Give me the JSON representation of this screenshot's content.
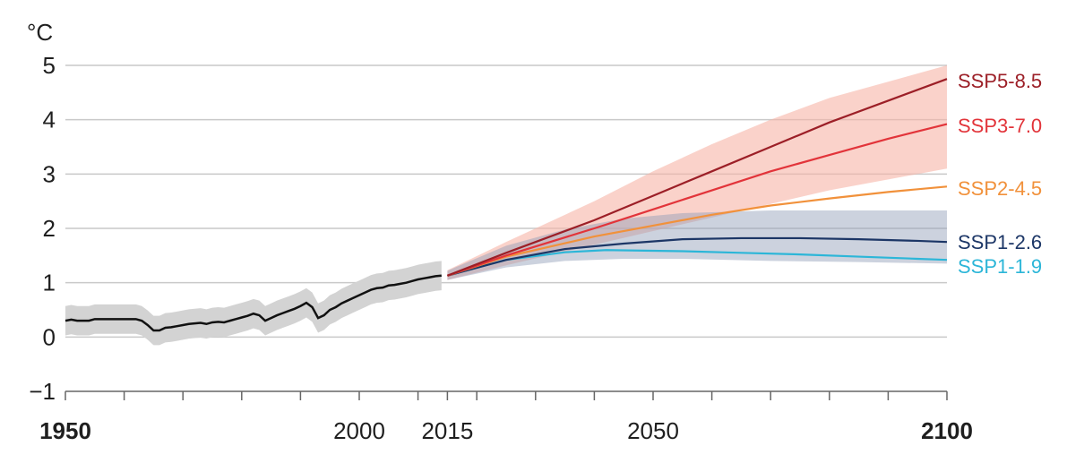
{
  "chart_data": {
    "type": "line",
    "ylabel": "°C",
    "xlim": [
      1950,
      2100
    ],
    "ylim": [
      -1,
      5
    ],
    "y_ticks": [
      -1,
      0,
      1,
      2,
      3,
      4,
      5
    ],
    "x_tick_labels": [
      {
        "value": 1950,
        "label": "1950",
        "bold": true
      },
      {
        "value": 2000,
        "label": "2000",
        "bold": false
      },
      {
        "value": 2015,
        "label": "2015",
        "bold": false
      },
      {
        "value": 2050,
        "label": "2050",
        "bold": false
      },
      {
        "value": 2100,
        "label": "2100",
        "bold": true
      }
    ],
    "x_minor_ticks": [
      1950,
      1960,
      1970,
      1980,
      1990,
      2000,
      2010,
      2015,
      2020,
      2030,
      2040,
      2050,
      2060,
      2070,
      2080,
      2090,
      2100
    ],
    "grid": true,
    "historical": {
      "color": "#111111",
      "band_color": "#d3d3d3",
      "points": [
        [
          1950,
          0.3
        ],
        [
          1951,
          0.32
        ],
        [
          1952,
          0.3
        ],
        [
          1953,
          0.3
        ],
        [
          1954,
          0.3
        ],
        [
          1955,
          0.33
        ],
        [
          1956,
          0.33
        ],
        [
          1957,
          0.33
        ],
        [
          1958,
          0.33
        ],
        [
          1959,
          0.33
        ],
        [
          1960,
          0.33
        ],
        [
          1961,
          0.33
        ],
        [
          1962,
          0.33
        ],
        [
          1963,
          0.3
        ],
        [
          1964,
          0.22
        ],
        [
          1965,
          0.12
        ],
        [
          1966,
          0.12
        ],
        [
          1967,
          0.17
        ],
        [
          1968,
          0.18
        ],
        [
          1969,
          0.2
        ],
        [
          1970,
          0.22
        ],
        [
          1971,
          0.24
        ],
        [
          1972,
          0.25
        ],
        [
          1973,
          0.26
        ],
        [
          1974,
          0.24
        ],
        [
          1975,
          0.27
        ],
        [
          1976,
          0.28
        ],
        [
          1977,
          0.27
        ],
        [
          1978,
          0.3
        ],
        [
          1979,
          0.33
        ],
        [
          1980,
          0.36
        ],
        [
          1981,
          0.39
        ],
        [
          1982,
          0.43
        ],
        [
          1983,
          0.4
        ],
        [
          1984,
          0.3
        ],
        [
          1985,
          0.35
        ],
        [
          1986,
          0.4
        ],
        [
          1987,
          0.44
        ],
        [
          1988,
          0.48
        ],
        [
          1989,
          0.52
        ],
        [
          1990,
          0.57
        ],
        [
          1991,
          0.63
        ],
        [
          1992,
          0.55
        ],
        [
          1993,
          0.35
        ],
        [
          1994,
          0.4
        ],
        [
          1995,
          0.5
        ],
        [
          1996,
          0.55
        ],
        [
          1997,
          0.62
        ],
        [
          1998,
          0.67
        ],
        [
          1999,
          0.72
        ],
        [
          2000,
          0.77
        ],
        [
          2001,
          0.82
        ],
        [
          2002,
          0.87
        ],
        [
          2003,
          0.9
        ],
        [
          2004,
          0.91
        ],
        [
          2005,
          0.95
        ],
        [
          2006,
          0.96
        ],
        [
          2007,
          0.98
        ],
        [
          2008,
          1.0
        ],
        [
          2009,
          1.03
        ],
        [
          2010,
          1.06
        ],
        [
          2011,
          1.08
        ],
        [
          2012,
          1.1
        ],
        [
          2013,
          1.12
        ],
        [
          2014,
          1.13
        ]
      ],
      "band_half_width": 0.27
    },
    "projection_start": [
      2015,
      1.13
    ],
    "series": [
      {
        "name": "SSP5-8.5",
        "color": "#9c1f27",
        "label_color": "#9c1f27",
        "points": [
          [
            2015,
            1.13
          ],
          [
            2025,
            1.55
          ],
          [
            2040,
            2.15
          ],
          [
            2050,
            2.6
          ],
          [
            2060,
            3.05
          ],
          [
            2070,
            3.5
          ],
          [
            2080,
            3.95
          ],
          [
            2090,
            4.35
          ],
          [
            2100,
            4.75
          ]
        ]
      },
      {
        "name": "SSP3-7.0",
        "color": "#e2343a",
        "label_color": "#e2343a",
        "points": [
          [
            2015,
            1.13
          ],
          [
            2025,
            1.5
          ],
          [
            2040,
            2.0
          ],
          [
            2050,
            2.35
          ],
          [
            2060,
            2.7
          ],
          [
            2070,
            3.05
          ],
          [
            2080,
            3.35
          ],
          [
            2090,
            3.65
          ],
          [
            2100,
            3.92
          ]
        ]
      },
      {
        "name": "SSP2-4.5",
        "color": "#f1913b",
        "label_color": "#f1913b",
        "points": [
          [
            2015,
            1.13
          ],
          [
            2025,
            1.48
          ],
          [
            2040,
            1.85
          ],
          [
            2050,
            2.05
          ],
          [
            2060,
            2.25
          ],
          [
            2070,
            2.42
          ],
          [
            2080,
            2.55
          ],
          [
            2090,
            2.67
          ],
          [
            2100,
            2.77
          ]
        ]
      },
      {
        "name": "SSP1-2.6",
        "color": "#1c3666",
        "label_color": "#1c3666",
        "points": [
          [
            2015,
            1.13
          ],
          [
            2025,
            1.42
          ],
          [
            2035,
            1.62
          ],
          [
            2045,
            1.72
          ],
          [
            2055,
            1.8
          ],
          [
            2065,
            1.82
          ],
          [
            2075,
            1.82
          ],
          [
            2085,
            1.8
          ],
          [
            2095,
            1.77
          ],
          [
            2100,
            1.75
          ]
        ]
      },
      {
        "name": "SSP1-1.9",
        "color": "#2cb6d8",
        "label_color": "#2cb6d8",
        "points": [
          [
            2015,
            1.13
          ],
          [
            2025,
            1.42
          ],
          [
            2035,
            1.56
          ],
          [
            2042,
            1.6
          ],
          [
            2055,
            1.58
          ],
          [
            2065,
            1.55
          ],
          [
            2075,
            1.52
          ],
          [
            2085,
            1.48
          ],
          [
            2095,
            1.44
          ],
          [
            2100,
            1.42
          ]
        ]
      }
    ],
    "bands": [
      {
        "name": "SSP5-8.5 / SSP3-7.0 very likely range",
        "color": "#f7b4a6",
        "opacity": 0.6,
        "upper": [
          [
            2015,
            1.23
          ],
          [
            2025,
            1.75
          ],
          [
            2040,
            2.5
          ],
          [
            2050,
            3.05
          ],
          [
            2060,
            3.55
          ],
          [
            2070,
            4.0
          ],
          [
            2080,
            4.4
          ],
          [
            2090,
            4.7
          ],
          [
            2100,
            5.0
          ]
        ],
        "lower": [
          [
            2015,
            1.05
          ],
          [
            2025,
            1.32
          ],
          [
            2040,
            1.7
          ],
          [
            2050,
            1.95
          ],
          [
            2060,
            2.2
          ],
          [
            2070,
            2.45
          ],
          [
            2080,
            2.7
          ],
          [
            2090,
            2.9
          ],
          [
            2100,
            3.1
          ]
        ]
      },
      {
        "name": "SSP1-2.6 / SSP1-1.9 very likely range",
        "color": "#8d9bb5",
        "opacity": 0.45,
        "upper": [
          [
            2015,
            1.22
          ],
          [
            2025,
            1.68
          ],
          [
            2035,
            1.98
          ],
          [
            2045,
            2.18
          ],
          [
            2055,
            2.28
          ],
          [
            2070,
            2.33
          ],
          [
            2085,
            2.33
          ],
          [
            2100,
            2.33
          ]
        ],
        "lower": [
          [
            2015,
            1.05
          ],
          [
            2025,
            1.28
          ],
          [
            2035,
            1.4
          ],
          [
            2045,
            1.44
          ],
          [
            2055,
            1.44
          ],
          [
            2070,
            1.4
          ],
          [
            2085,
            1.38
          ],
          [
            2100,
            1.35
          ]
        ]
      }
    ]
  }
}
